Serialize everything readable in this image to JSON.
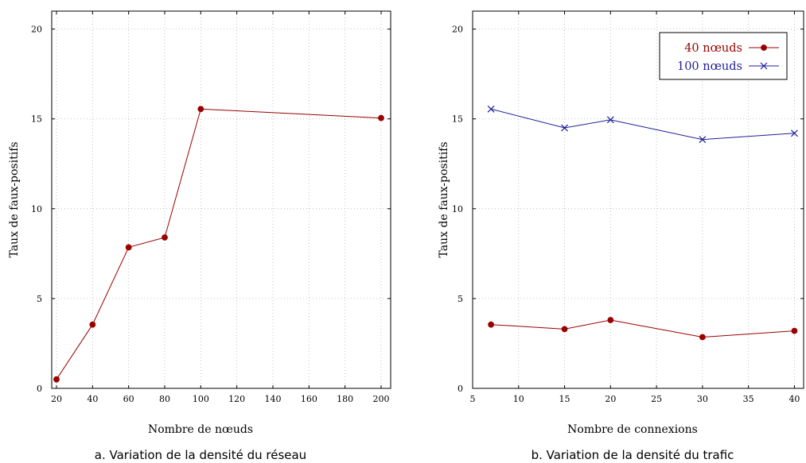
{
  "chart_data": [
    {
      "type": "line",
      "caption": "a. Variation de la densité du réseau",
      "xlabel": "Nombre de nœuds",
      "ylabel": "Taux de faux-positifs",
      "ylim": [
        0,
        21
      ],
      "yticks": [
        0,
        5,
        10,
        15,
        20
      ],
      "categories": [
        "20",
        "40",
        "60",
        "80",
        "100",
        "120",
        "140",
        "160",
        "180",
        "200"
      ],
      "grid": true,
      "series": [
        {
          "color": "#990000",
          "marker": "circle",
          "x": [
            "20",
            "40",
            "60",
            "80",
            "100",
            "200"
          ],
          "values": [
            0.5,
            3.55,
            7.85,
            8.4,
            15.55,
            15.05
          ]
        }
      ]
    },
    {
      "type": "line",
      "caption": "b. Variation de la densité du trafic",
      "xlabel": "Nombre de connexions",
      "ylabel": "Taux de faux-positifs",
      "xlim": [
        5,
        41
      ],
      "xticks": [
        5,
        10,
        15,
        20,
        25,
        30,
        35,
        40
      ],
      "ylim": [
        0,
        21
      ],
      "yticks": [
        0,
        5,
        10,
        15,
        20
      ],
      "grid": true,
      "legend": "top-right",
      "series": [
        {
          "name": "40 nœuds",
          "color": "#990000",
          "marker": "circle",
          "x": [
            7,
            15,
            20,
            30,
            40
          ],
          "values": [
            3.55,
            3.3,
            3.8,
            2.85,
            3.2
          ]
        },
        {
          "name": "100 nœuds",
          "color": "#1f1f99",
          "marker": "cross",
          "x": [
            7,
            15,
            20,
            30,
            40
          ],
          "values": [
            15.55,
            14.5,
            14.95,
            13.85,
            14.2
          ]
        }
      ]
    }
  ]
}
